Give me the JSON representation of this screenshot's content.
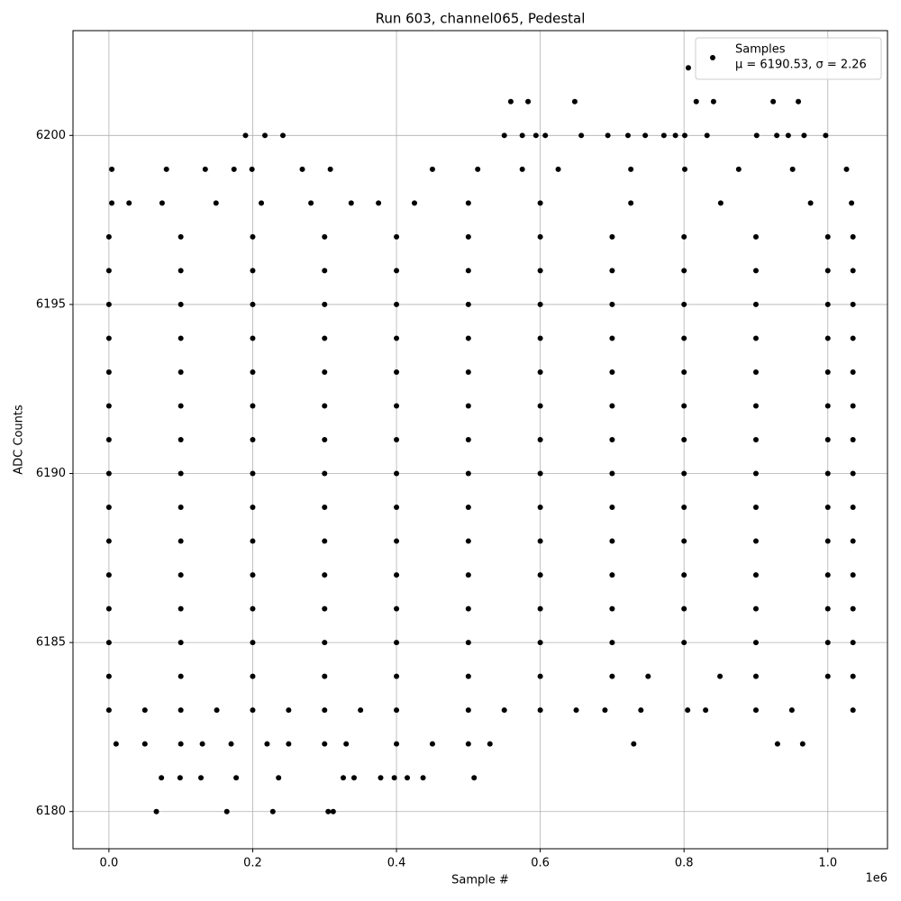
{
  "chart_data": {
    "type": "scatter",
    "title": "Run 603, channel065, Pedestal",
    "x_label": "Sample #",
    "y_label": "ADC Counts",
    "x_offset_label": "1e6",
    "xlim": [
      -0.05,
      1.083
    ],
    "ylim": [
      6178.9,
      6203.1
    ],
    "xticks": [
      {
        "value": 0,
        "label": "0.0"
      },
      0.2,
      0.4,
      0.6,
      0.8,
      {
        "value": 1,
        "label": "1.0"
      }
    ],
    "yticks": [
      6180,
      6185,
      6190,
      6195,
      6200
    ],
    "grid": true,
    "legend": "upper right",
    "series": [
      {
        "name": "Samples",
        "legend_stats": "μ = 6190.53, σ = 2.26",
        "color": "#000000",
        "points": [
          [
            0.806,
            6202
          ],
          [
            0.559,
            6201
          ],
          [
            0.583,
            6201
          ],
          [
            0.648,
            6201
          ],
          [
            0.817,
            6201
          ],
          [
            0.841,
            6201
          ],
          [
            0.924,
            6201
          ],
          [
            0.959,
            6201
          ],
          [
            0.19,
            6200
          ],
          [
            0.217,
            6200
          ],
          [
            0.242,
            6200
          ],
          [
            0.55,
            6200
          ],
          [
            0.575,
            6200
          ],
          [
            0.594,
            6200
          ],
          [
            0.607,
            6200
          ],
          [
            0.657,
            6200
          ],
          [
            0.694,
            6200
          ],
          [
            0.722,
            6200
          ],
          [
            0.746,
            6200
          ],
          [
            0.772,
            6200
          ],
          [
            0.788,
            6200
          ],
          [
            0.801,
            6200
          ],
          [
            0.832,
            6200
          ],
          [
            0.901,
            6200
          ],
          [
            0.929,
            6200
          ],
          [
            0.945,
            6200
          ],
          [
            0.967,
            6200
          ],
          [
            0.997,
            6200
          ],
          [
            0.004,
            6199
          ],
          [
            0.08,
            6199
          ],
          [
            0.134,
            6199
          ],
          [
            0.174,
            6199
          ],
          [
            0.199,
            6199
          ],
          [
            0.269,
            6199
          ],
          [
            0.308,
            6199
          ],
          [
            0.45,
            6199
          ],
          [
            0.513,
            6199
          ],
          [
            0.575,
            6199
          ],
          [
            0.625,
            6199
          ],
          [
            0.726,
            6199
          ],
          [
            0.801,
            6199
          ],
          [
            0.876,
            6199
          ],
          [
            0.951,
            6199
          ],
          [
            1.026,
            6199
          ],
          [
            0.004,
            6198
          ],
          [
            0.028,
            6198
          ],
          [
            0.074,
            6198
          ],
          [
            0.149,
            6198
          ],
          [
            0.212,
            6198
          ],
          [
            0.281,
            6198
          ],
          [
            0.337,
            6198
          ],
          [
            0.375,
            6198
          ],
          [
            0.425,
            6198
          ],
          [
            0.5,
            6198
          ],
          [
            0.6,
            6198
          ],
          [
            0.726,
            6198
          ],
          [
            0.851,
            6198
          ],
          [
            0.976,
            6198
          ],
          [
            1.033,
            6198
          ],
          [
            0,
            6197
          ],
          [
            0.1,
            6197
          ],
          [
            0.2,
            6197
          ],
          [
            0.3,
            6197
          ],
          [
            0.4,
            6197
          ],
          [
            0.5,
            6197
          ],
          [
            0.6,
            6197
          ],
          [
            0.7,
            6197
          ],
          [
            0.8,
            6197
          ],
          [
            0.9,
            6197
          ],
          [
            1,
            6197
          ],
          [
            1.035,
            6197
          ],
          [
            0,
            6196
          ],
          [
            0.1,
            6196
          ],
          [
            0.2,
            6196
          ],
          [
            0.3,
            6196
          ],
          [
            0.4,
            6196
          ],
          [
            0.5,
            6196
          ],
          [
            0.6,
            6196
          ],
          [
            0.7,
            6196
          ],
          [
            0.8,
            6196
          ],
          [
            0.9,
            6196
          ],
          [
            1,
            6196
          ],
          [
            1.035,
            6196
          ],
          [
            0,
            6195
          ],
          [
            0.1,
            6195
          ],
          [
            0.2,
            6195
          ],
          [
            0.3,
            6195
          ],
          [
            0.4,
            6195
          ],
          [
            0.5,
            6195
          ],
          [
            0.6,
            6195
          ],
          [
            0.7,
            6195
          ],
          [
            0.8,
            6195
          ],
          [
            0.9,
            6195
          ],
          [
            1,
            6195
          ],
          [
            1.035,
            6195
          ],
          [
            0,
            6194
          ],
          [
            0.1,
            6194
          ],
          [
            0.2,
            6194
          ],
          [
            0.3,
            6194
          ],
          [
            0.4,
            6194
          ],
          [
            0.5,
            6194
          ],
          [
            0.6,
            6194
          ],
          [
            0.7,
            6194
          ],
          [
            0.8,
            6194
          ],
          [
            0.9,
            6194
          ],
          [
            1,
            6194
          ],
          [
            1.035,
            6194
          ],
          [
            0,
            6193
          ],
          [
            0.1,
            6193
          ],
          [
            0.2,
            6193
          ],
          [
            0.3,
            6193
          ],
          [
            0.4,
            6193
          ],
          [
            0.5,
            6193
          ],
          [
            0.6,
            6193
          ],
          [
            0.7,
            6193
          ],
          [
            0.8,
            6193
          ],
          [
            0.9,
            6193
          ],
          [
            1,
            6193
          ],
          [
            1.035,
            6193
          ],
          [
            0,
            6192
          ],
          [
            0.1,
            6192
          ],
          [
            0.2,
            6192
          ],
          [
            0.3,
            6192
          ],
          [
            0.4,
            6192
          ],
          [
            0.5,
            6192
          ],
          [
            0.6,
            6192
          ],
          [
            0.7,
            6192
          ],
          [
            0.8,
            6192
          ],
          [
            0.9,
            6192
          ],
          [
            1,
            6192
          ],
          [
            1.035,
            6192
          ],
          [
            0,
            6191
          ],
          [
            0.1,
            6191
          ],
          [
            0.2,
            6191
          ],
          [
            0.3,
            6191
          ],
          [
            0.4,
            6191
          ],
          [
            0.5,
            6191
          ],
          [
            0.6,
            6191
          ],
          [
            0.7,
            6191
          ],
          [
            0.8,
            6191
          ],
          [
            0.9,
            6191
          ],
          [
            1,
            6191
          ],
          [
            1.035,
            6191
          ],
          [
            0,
            6190
          ],
          [
            0.1,
            6190
          ],
          [
            0.2,
            6190
          ],
          [
            0.3,
            6190
          ],
          [
            0.4,
            6190
          ],
          [
            0.5,
            6190
          ],
          [
            0.6,
            6190
          ],
          [
            0.7,
            6190
          ],
          [
            0.8,
            6190
          ],
          [
            0.9,
            6190
          ],
          [
            1,
            6190
          ],
          [
            1.035,
            6190
          ],
          [
            0,
            6189
          ],
          [
            0.1,
            6189
          ],
          [
            0.2,
            6189
          ],
          [
            0.3,
            6189
          ],
          [
            0.4,
            6189
          ],
          [
            0.5,
            6189
          ],
          [
            0.6,
            6189
          ],
          [
            0.7,
            6189
          ],
          [
            0.8,
            6189
          ],
          [
            0.9,
            6189
          ],
          [
            1,
            6189
          ],
          [
            1.035,
            6189
          ],
          [
            0,
            6188
          ],
          [
            0.1,
            6188
          ],
          [
            0.2,
            6188
          ],
          [
            0.3,
            6188
          ],
          [
            0.4,
            6188
          ],
          [
            0.5,
            6188
          ],
          [
            0.6,
            6188
          ],
          [
            0.7,
            6188
          ],
          [
            0.8,
            6188
          ],
          [
            0.9,
            6188
          ],
          [
            1,
            6188
          ],
          [
            1.035,
            6188
          ],
          [
            0,
            6187
          ],
          [
            0.1,
            6187
          ],
          [
            0.2,
            6187
          ],
          [
            0.3,
            6187
          ],
          [
            0.4,
            6187
          ],
          [
            0.5,
            6187
          ],
          [
            0.6,
            6187
          ],
          [
            0.7,
            6187
          ],
          [
            0.8,
            6187
          ],
          [
            0.9,
            6187
          ],
          [
            1,
            6187
          ],
          [
            1.035,
            6187
          ],
          [
            0,
            6186
          ],
          [
            0.1,
            6186
          ],
          [
            0.2,
            6186
          ],
          [
            0.3,
            6186
          ],
          [
            0.4,
            6186
          ],
          [
            0.5,
            6186
          ],
          [
            0.6,
            6186
          ],
          [
            0.7,
            6186
          ],
          [
            0.8,
            6186
          ],
          [
            0.9,
            6186
          ],
          [
            1,
            6186
          ],
          [
            1.035,
            6186
          ],
          [
            0,
            6185
          ],
          [
            0.1,
            6185
          ],
          [
            0.2,
            6185
          ],
          [
            0.3,
            6185
          ],
          [
            0.4,
            6185
          ],
          [
            0.5,
            6185
          ],
          [
            0.6,
            6185
          ],
          [
            0.7,
            6185
          ],
          [
            0.8,
            6185
          ],
          [
            0.9,
            6185
          ],
          [
            1,
            6185
          ],
          [
            1.035,
            6185
          ],
          [
            0,
            6184
          ],
          [
            0.1,
            6184
          ],
          [
            0.2,
            6184
          ],
          [
            0.3,
            6184
          ],
          [
            0.4,
            6184
          ],
          [
            0.5,
            6184
          ],
          [
            0.6,
            6184
          ],
          [
            0.7,
            6184
          ],
          [
            0.75,
            6184
          ],
          [
            0.85,
            6184
          ],
          [
            0.9,
            6184
          ],
          [
            1,
            6184
          ],
          [
            1.035,
            6184
          ],
          [
            0,
            6183
          ],
          [
            0.05,
            6183
          ],
          [
            0.1,
            6183
          ],
          [
            0.15,
            6183
          ],
          [
            0.2,
            6183
          ],
          [
            0.25,
            6183
          ],
          [
            0.3,
            6183
          ],
          [
            0.35,
            6183
          ],
          [
            0.4,
            6183
          ],
          [
            0.5,
            6183
          ],
          [
            0.55,
            6183
          ],
          [
            0.6,
            6183
          ],
          [
            0.65,
            6183
          ],
          [
            0.69,
            6183
          ],
          [
            0.74,
            6183
          ],
          [
            0.805,
            6183
          ],
          [
            0.83,
            6183
          ],
          [
            0.9,
            6183
          ],
          [
            0.95,
            6183
          ],
          [
            1.035,
            6183
          ],
          [
            0.01,
            6182
          ],
          [
            0.05,
            6182
          ],
          [
            0.1,
            6182
          ],
          [
            0.13,
            6182
          ],
          [
            0.17,
            6182
          ],
          [
            0.22,
            6182
          ],
          [
            0.25,
            6182
          ],
          [
            0.3,
            6182
          ],
          [
            0.33,
            6182
          ],
          [
            0.4,
            6182
          ],
          [
            0.45,
            6182
          ],
          [
            0.5,
            6182
          ],
          [
            0.53,
            6182
          ],
          [
            0.73,
            6182
          ],
          [
            0.93,
            6182
          ],
          [
            0.965,
            6182
          ],
          [
            0.073,
            6181
          ],
          [
            0.099,
            6181
          ],
          [
            0.128,
            6181
          ],
          [
            0.177,
            6181
          ],
          [
            0.236,
            6181
          ],
          [
            0.326,
            6181
          ],
          [
            0.341,
            6181
          ],
          [
            0.378,
            6181
          ],
          [
            0.397,
            6181
          ],
          [
            0.415,
            6181
          ],
          [
            0.437,
            6181
          ],
          [
            0.508,
            6181
          ],
          [
            0.066,
            6180
          ],
          [
            0.164,
            6180
          ],
          [
            0.228,
            6180
          ],
          [
            0.305,
            6180
          ],
          [
            0.312,
            6180
          ]
        ]
      }
    ]
  }
}
